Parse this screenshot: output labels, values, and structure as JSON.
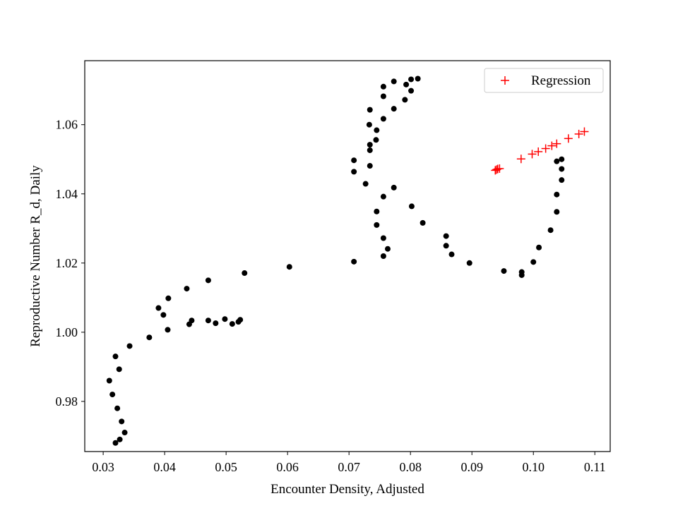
{
  "chart_data": {
    "type": "scatter",
    "title": "",
    "xlabel": "Encounter Density, Adjusted",
    "ylabel": "Reproductive Number R_d, Daily",
    "xlim": [
      0.027,
      0.1125
    ],
    "ylim": [
      0.9655,
      1.0785
    ],
    "grid": false,
    "legend_position": "top-right",
    "xticks": [
      {
        "value": 0.03,
        "label": "0.03"
      },
      {
        "value": 0.04,
        "label": "0.04"
      },
      {
        "value": 0.05,
        "label": "0.05"
      },
      {
        "value": 0.06,
        "label": "0.06"
      },
      {
        "value": 0.07,
        "label": "0.07"
      },
      {
        "value": 0.08,
        "label": "0.08"
      },
      {
        "value": 0.09,
        "label": "0.09"
      },
      {
        "value": 0.1,
        "label": "0.10"
      },
      {
        "value": 0.11,
        "label": "0.11"
      }
    ],
    "yticks": [
      {
        "value": 0.98,
        "label": "0.98"
      },
      {
        "value": 1.0,
        "label": "1.00"
      },
      {
        "value": 1.02,
        "label": "1.02"
      },
      {
        "value": 1.04,
        "label": "1.04"
      },
      {
        "value": 1.06,
        "label": "1.06"
      }
    ],
    "series": [
      {
        "name": "",
        "marker": "circle",
        "color": "#000000",
        "points": [
          [
            0.032,
            0.968
          ],
          [
            0.0327,
            0.969
          ],
          [
            0.0335,
            0.971
          ],
          [
            0.033,
            0.9742
          ],
          [
            0.0323,
            0.978
          ],
          [
            0.0315,
            0.982
          ],
          [
            0.031,
            0.986
          ],
          [
            0.0326,
            0.9893
          ],
          [
            0.032,
            0.993
          ],
          [
            0.0343,
            0.996
          ],
          [
            0.0375,
            0.9985
          ],
          [
            0.0405,
            1.0007
          ],
          [
            0.0398,
            1.005
          ],
          [
            0.039,
            1.007
          ],
          [
            0.0406,
            1.0098
          ],
          [
            0.0436,
            1.0126
          ],
          [
            0.044,
            1.0023
          ],
          [
            0.0444,
            1.0034
          ],
          [
            0.0471,
            1.0034
          ],
          [
            0.0483,
            1.0026
          ],
          [
            0.0498,
            1.0038
          ],
          [
            0.051,
            1.0024
          ],
          [
            0.052,
            1.003
          ],
          [
            0.0523,
            1.0036
          ],
          [
            0.0471,
            1.015
          ],
          [
            0.053,
            1.0171
          ],
          [
            0.0603,
            1.0189
          ],
          [
            0.0708,
            1.0204
          ],
          [
            0.0708,
            1.0464
          ],
          [
            0.0708,
            1.0497
          ],
          [
            0.0727,
            1.0429
          ],
          [
            0.0734,
            1.0481
          ],
          [
            0.0734,
            1.0526
          ],
          [
            0.0734,
            1.0542
          ],
          [
            0.0733,
            1.06
          ],
          [
            0.0745,
            1.0584
          ],
          [
            0.0744,
            1.0556
          ],
          [
            0.0734,
            1.0643
          ],
          [
            0.0756,
            1.0617
          ],
          [
            0.0756,
            1.0682
          ],
          [
            0.0756,
            1.071
          ],
          [
            0.0773,
            1.0725
          ],
          [
            0.0773,
            1.0646
          ],
          [
            0.0791,
            1.0672
          ],
          [
            0.0793,
            1.0716
          ],
          [
            0.0801,
            1.0731
          ],
          [
            0.0812,
            1.0733
          ],
          [
            0.0801,
            1.0698
          ],
          [
            0.0756,
            1.0392
          ],
          [
            0.0773,
            1.0418
          ],
          [
            0.0745,
            1.0349
          ],
          [
            0.0745,
            1.031
          ],
          [
            0.0756,
            1.0272
          ],
          [
            0.0763,
            1.0241
          ],
          [
            0.0756,
            1.022
          ],
          [
            0.0802,
            1.0364
          ],
          [
            0.082,
            1.0316
          ],
          [
            0.0858,
            1.0278
          ],
          [
            0.0858,
            1.025
          ],
          [
            0.0867,
            1.0225
          ],
          [
            0.0896,
            1.02
          ],
          [
            0.0952,
            1.0177
          ],
          [
            0.0981,
            1.0165
          ],
          [
            0.0981,
            1.0174
          ],
          [
            0.1,
            1.0203
          ],
          [
            0.1009,
            1.0245
          ],
          [
            0.1028,
            1.0295
          ],
          [
            0.1038,
            1.0348
          ],
          [
            0.1038,
            1.0398
          ],
          [
            0.1046,
            1.044
          ],
          [
            0.1046,
            1.0472
          ],
          [
            0.1038,
            1.0494
          ],
          [
            0.1046,
            1.05
          ]
        ]
      },
      {
        "name": "Regression",
        "marker": "plus",
        "color": "#ff0000",
        "points": [
          [
            0.0938,
            1.0468
          ],
          [
            0.094,
            1.047
          ],
          [
            0.0942,
            1.0472
          ],
          [
            0.0945,
            1.0473
          ],
          [
            0.098,
            1.0501
          ],
          [
            0.0998,
            1.0515
          ],
          [
            0.1008,
            1.0522
          ],
          [
            0.102,
            1.0531
          ],
          [
            0.103,
            1.0539
          ],
          [
            0.1038,
            1.0545
          ],
          [
            0.1057,
            1.056
          ],
          [
            0.1074,
            1.0573
          ],
          [
            0.1083,
            1.058
          ]
        ]
      }
    ]
  }
}
